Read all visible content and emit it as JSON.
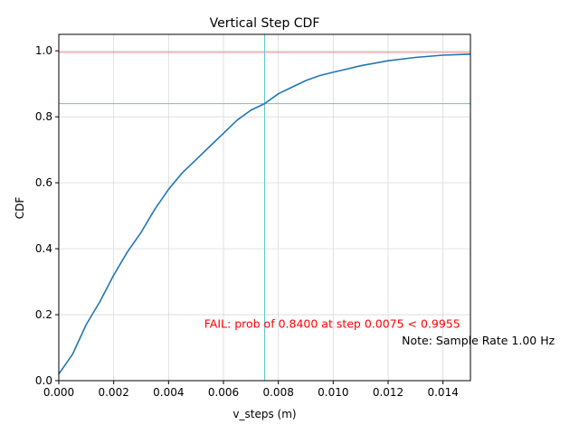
{
  "colors": {
    "series": "#1f77b4",
    "threshold_line": "#f08080",
    "marker_line": "#5fc8cc",
    "grid": "#d9d9d9",
    "fail_text": "#ff0000",
    "note_text": "#000000"
  },
  "chart_data": {
    "type": "line",
    "title": "Vertical Step CDF",
    "xlabel": "v_steps (m)",
    "ylabel": "CDF",
    "xlim": [
      0,
      0.015
    ],
    "ylim": [
      0,
      1.05
    ],
    "grid": true,
    "legend": "none",
    "x_ticks": [
      0,
      0.002,
      0.004,
      0.006,
      0.008,
      0.01,
      0.012,
      0.014
    ],
    "x_tick_labels": [
      "0.000",
      "0.002",
      "0.004",
      "0.006",
      "0.008",
      "0.010",
      "0.012",
      "0.014"
    ],
    "y_ticks": [
      0,
      0.2,
      0.4,
      0.6,
      0.8,
      1.0
    ],
    "y_tick_labels": [
      "0.0",
      "0.2",
      "0.4",
      "0.6",
      "0.8",
      "1.0"
    ],
    "series": [
      {
        "x": [
          0,
          0.0005,
          0.001,
          0.0015,
          0.002,
          0.0025,
          0.003,
          0.0035,
          0.004,
          0.0045,
          0.005,
          0.0055,
          0.006,
          0.0065,
          0.007,
          0.0075,
          0.008,
          0.0085,
          0.009,
          0.0095,
          0.01,
          0.011,
          0.012,
          0.013,
          0.014,
          0.015
        ],
        "y": [
          0.02,
          0.08,
          0.17,
          0.24,
          0.32,
          0.39,
          0.45,
          0.52,
          0.58,
          0.63,
          0.67,
          0.71,
          0.75,
          0.79,
          0.82,
          0.84,
          0.87,
          0.89,
          0.91,
          0.925,
          0.935,
          0.955,
          0.97,
          0.98,
          0.987,
          0.99
        ]
      }
    ],
    "reference_lines": {
      "horizontal": [
        0.9955,
        0.84
      ],
      "vertical": [
        0.0075
      ]
    },
    "annotations": [
      {
        "text": "FAIL: prob of 0.8400 at step 0.0075 < 0.9955",
        "x": 0.0053,
        "y": 0.16,
        "color": "#ff0000"
      },
      {
        "text": "Note: Sample Rate 1.00 Hz",
        "x": 0.0125,
        "y": 0.11,
        "color": "#000000"
      }
    ]
  }
}
